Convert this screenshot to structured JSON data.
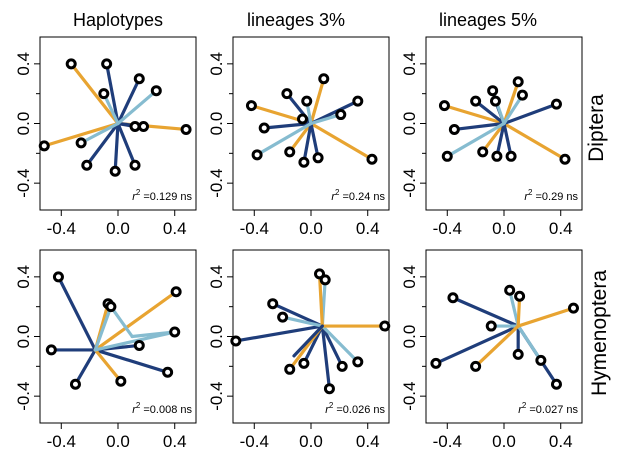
{
  "colors": {
    "dark_blue": "#1f3d7a",
    "light_blue": "#86bcd0",
    "orange": "#e8a431",
    "point_fill": "#1a1a1a",
    "point_ring": "#000000"
  },
  "column_titles": [
    "Haplotypes",
    "lineages 3%",
    "lineages 5%"
  ],
  "row_labels": [
    "Diptera",
    "Hymenoptera"
  ],
  "r2_prefix": "r",
  "r2_sup": "2",
  "chart_data": {
    "type": "scatter",
    "description_free": true,
    "xlim": [
      -0.55,
      0.55
    ],
    "ylim": [
      -0.58,
      0.58
    ],
    "x_ticks": [
      -0.4,
      0.0,
      0.4
    ],
    "x_tick_labels": [
      "-0.4",
      "0.0",
      "0.4"
    ],
    "y_ticks": [
      -0.4,
      0.0,
      0.4
    ],
    "y_tick_labels": [
      "-0.4",
      "0.0",
      "0.4"
    ],
    "panels": [
      {
        "row": 0,
        "col": 0,
        "r2_value": "=0.129 ns",
        "center": [
          0.0,
          0.0
        ],
        "segments": [
          {
            "color": "orange",
            "x": -0.33,
            "y": 0.4
          },
          {
            "color": "orange",
            "x": -0.52,
            "y": -0.15
          },
          {
            "color": "orange",
            "x": 0.48,
            "y": -0.04
          },
          {
            "color": "dark_blue",
            "x": -0.08,
            "y": 0.4
          },
          {
            "color": "dark_blue",
            "x": 0.15,
            "y": 0.3
          },
          {
            "color": "dark_blue",
            "x": -0.22,
            "y": -0.28
          },
          {
            "color": "dark_blue",
            "x": -0.02,
            "y": -0.32
          },
          {
            "color": "dark_blue",
            "x": 0.12,
            "y": -0.28
          },
          {
            "color": "dark_blue",
            "x": 0.18,
            "y": -0.02
          },
          {
            "color": "dark_blue",
            "x": 0.12,
            "y": -0.02
          },
          {
            "color": "light_blue",
            "x": 0.27,
            "y": 0.22
          },
          {
            "color": "light_blue",
            "x": -0.26,
            "y": -0.13
          },
          {
            "color": "light_blue",
            "x": -0.1,
            "y": 0.2
          }
        ]
      },
      {
        "row": 0,
        "col": 1,
        "r2_value": "=0.24 ns",
        "center": [
          0.0,
          0.0
        ],
        "segments": [
          {
            "color": "orange",
            "x": -0.42,
            "y": 0.12
          },
          {
            "color": "orange",
            "x": 0.09,
            "y": 0.3
          },
          {
            "color": "orange",
            "x": 0.43,
            "y": -0.24
          },
          {
            "color": "orange",
            "x": -0.15,
            "y": -0.19
          },
          {
            "color": "dark_blue",
            "x": -0.17,
            "y": 0.2
          },
          {
            "color": "dark_blue",
            "x": -0.33,
            "y": -0.03
          },
          {
            "color": "dark_blue",
            "x": -0.05,
            "y": -0.26
          },
          {
            "color": "dark_blue",
            "x": 0.05,
            "y": -0.23
          },
          {
            "color": "dark_blue",
            "x": 0.33,
            "y": 0.15
          },
          {
            "color": "dark_blue",
            "x": -0.06,
            "y": 0.03
          },
          {
            "color": "light_blue",
            "x": -0.38,
            "y": -0.21
          },
          {
            "color": "light_blue",
            "x": 0.21,
            "y": 0.06
          },
          {
            "color": "light_blue",
            "x": -0.03,
            "y": 0.15
          }
        ]
      },
      {
        "row": 0,
        "col": 2,
        "r2_value": "=0.29 ns",
        "center": [
          0.0,
          0.0
        ],
        "segments": [
          {
            "color": "orange",
            "x": -0.42,
            "y": 0.12
          },
          {
            "color": "orange",
            "x": 0.1,
            "y": 0.28
          },
          {
            "color": "orange",
            "x": 0.43,
            "y": -0.24
          },
          {
            "color": "orange",
            "x": -0.15,
            "y": -0.19
          },
          {
            "color": "dark_blue",
            "x": -0.2,
            "y": 0.15
          },
          {
            "color": "dark_blue",
            "x": -0.35,
            "y": -0.04
          },
          {
            "color": "dark_blue",
            "x": -0.05,
            "y": -0.22
          },
          {
            "color": "dark_blue",
            "x": 0.05,
            "y": -0.22
          },
          {
            "color": "dark_blue",
            "x": 0.37,
            "y": 0.13
          },
          {
            "color": "dark_blue",
            "x": -0.06,
            "y": 0.15
          },
          {
            "color": "light_blue",
            "x": -0.4,
            "y": -0.22
          },
          {
            "color": "light_blue",
            "x": 0.13,
            "y": 0.19
          },
          {
            "color": "light_blue",
            "x": -0.08,
            "y": 0.22
          }
        ]
      },
      {
        "row": 1,
        "col": 0,
        "r2_value": "=0.008 ns",
        "center": [
          -0.16,
          -0.09
        ],
        "segments": [
          {
            "color": "dark_blue",
            "x": -0.42,
            "y": 0.4
          },
          {
            "color": "dark_blue",
            "x": -0.47,
            "y": -0.09
          },
          {
            "color": "dark_blue",
            "x": -0.3,
            "y": -0.32
          },
          {
            "color": "dark_blue",
            "x": 0.35,
            "y": -0.24
          },
          {
            "color": "dark_blue",
            "x": 0.15,
            "y": -0.06
          },
          {
            "color": "orange",
            "x": 0.41,
            "y": 0.3
          },
          {
            "color": "orange",
            "x": -0.07,
            "y": 0.22
          },
          {
            "color": "orange",
            "x": 0.02,
            "y": -0.3
          },
          {
            "color": "light_blue",
            "x": 0.4,
            "y": 0.03
          },
          {
            "color": "light_blue",
            "x": -0.05,
            "y": 0.2
          }
        ],
        "hub_segments": [
          {
            "color": "light_blue",
            "from": [
              -0.05,
              0.2
            ],
            "to": [
              0.1,
              0.0
            ]
          },
          {
            "color": "light_blue",
            "from": [
              0.1,
              0.0
            ],
            "to": [
              0.4,
              0.03
            ]
          }
        ]
      },
      {
        "row": 1,
        "col": 1,
        "r2_value": "=0.026 ns",
        "center": [
          -0.12,
          -0.13
        ],
        "segments": [
          {
            "color": "dark_blue",
            "x": -0.27,
            "y": 0.22
          },
          {
            "color": "dark_blue",
            "x": -0.53,
            "y": -0.03
          },
          {
            "color": "dark_blue",
            "x": 0.22,
            "y": -0.2
          },
          {
            "color": "dark_blue",
            "x": 0.13,
            "y": -0.35
          },
          {
            "color": "dark_blue",
            "x": -0.05,
            "y": -0.18
          },
          {
            "color": "light_blue",
            "x": -0.2,
            "y": 0.13
          },
          {
            "color": "light_blue",
            "x": 0.1,
            "y": 0.38
          },
          {
            "color": "light_blue",
            "x": 0.33,
            "y": -0.17
          },
          {
            "color": "orange",
            "x": 0.06,
            "y": 0.42
          },
          {
            "color": "orange",
            "x": 0.52,
            "y": 0.07
          },
          {
            "color": "orange",
            "x": -0.15,
            "y": -0.22
          }
        ],
        "hub": [
          0.08,
          0.07
        ]
      },
      {
        "row": 1,
        "col": 2,
        "r2_value": "=0.027 ns",
        "center": [
          0.1,
          0.07
        ],
        "segments": [
          {
            "color": "dark_blue",
            "x": -0.36,
            "y": 0.26
          },
          {
            "color": "dark_blue",
            "x": -0.48,
            "y": -0.18
          },
          {
            "color": "dark_blue",
            "x": 0.1,
            "y": -0.12
          },
          {
            "color": "dark_blue",
            "x": 0.37,
            "y": -0.32
          },
          {
            "color": "light_blue",
            "x": 0.04,
            "y": 0.31
          },
          {
            "color": "light_blue",
            "x": -0.09,
            "y": 0.07
          },
          {
            "color": "light_blue",
            "x": 0.26,
            "y": -0.16
          },
          {
            "color": "orange",
            "x": 0.49,
            "y": 0.19
          },
          {
            "color": "orange",
            "x": 0.11,
            "y": 0.27
          },
          {
            "color": "orange",
            "x": -0.2,
            "y": -0.2
          }
        ],
        "hub": [
          0.1,
          0.07
        ],
        "outer_hub": [
          -0.07,
          -0.05
        ]
      }
    ]
  }
}
